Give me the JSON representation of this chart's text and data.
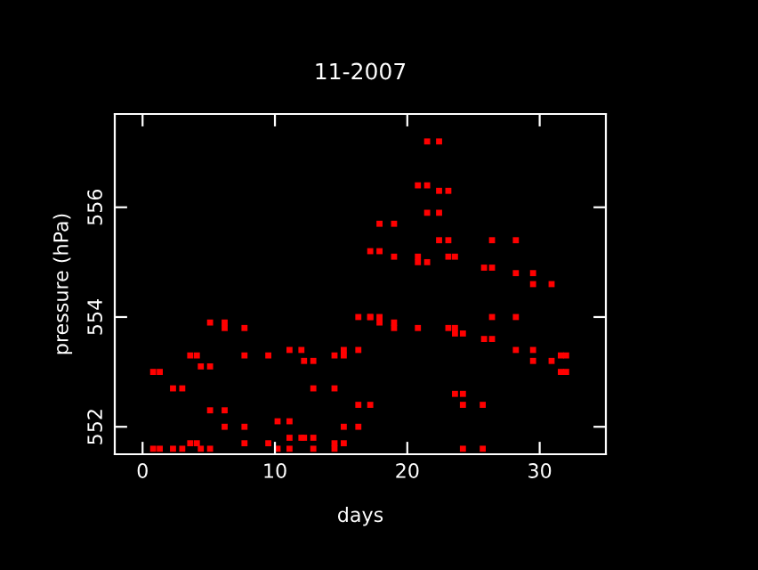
{
  "chart_data": {
    "type": "scatter",
    "title": "11-2007",
    "xlabel": "days",
    "ylabel": "pressure (hPa)",
    "xlim": [
      -2.1,
      35
    ],
    "xticks": [
      0,
      10,
      20,
      30
    ],
    "ylim": [
      551.5,
      557.7
    ],
    "yticks": [
      552,
      554,
      556
    ],
    "grid": false,
    "legend": false,
    "marker": "square",
    "series": [
      {
        "color": "#ff0000",
        "x": [
          0.8,
          0.8,
          1.3,
          1.3,
          2.3,
          2.3,
          3.0,
          3.0,
          3.6,
          3.6,
          4.1,
          4.1,
          4.4,
          4.4,
          5.1,
          5.1,
          5.1,
          5.1,
          6.2,
          6.2,
          6.2,
          6.2,
          7.7,
          7.7,
          7.7,
          7.7,
          9.5,
          9.5,
          10.2,
          10.2,
          11.1,
          11.1,
          11.1,
          11.1,
          12.0,
          12.0,
          12.2,
          12.2,
          12.9,
          12.9,
          12.9,
          12.9,
          14.5,
          14.5,
          14.5,
          14.5,
          15.2,
          15.2,
          15.2,
          15.2,
          16.3,
          16.3,
          16.3,
          16.3,
          17.2,
          17.2,
          17.2,
          17.2,
          17.9,
          17.9,
          17.9,
          17.9,
          19.0,
          19.0,
          19.0,
          19.0,
          20.8,
          20.8,
          20.8,
          20.8,
          21.5,
          21.5,
          21.5,
          21.5,
          22.4,
          22.4,
          22.4,
          22.4,
          23.1,
          23.1,
          23.1,
          23.1,
          23.6,
          23.6,
          23.6,
          23.6,
          24.2,
          24.2,
          24.2,
          24.2,
          25.7,
          25.7,
          25.8,
          25.8,
          26.4,
          26.4,
          26.4,
          26.4,
          28.2,
          28.2,
          28.2,
          28.2,
          29.5,
          29.5,
          29.5,
          29.5,
          30.9,
          30.9,
          31.6,
          31.6,
          32.0,
          32.0
        ],
        "values": [
          551.6,
          553.0,
          551.6,
          553.0,
          551.6,
          552.7,
          551.6,
          552.7,
          551.7,
          553.3,
          551.7,
          553.3,
          551.6,
          553.1,
          551.6,
          553.1,
          552.3,
          553.9,
          552.3,
          553.9,
          552.0,
          553.8,
          552.0,
          553.8,
          551.7,
          553.3,
          551.7,
          553.3,
          551.6,
          552.1,
          551.6,
          552.1,
          551.8,
          553.4,
          551.8,
          553.4,
          551.8,
          553.2,
          551.8,
          553.2,
          551.6,
          552.7,
          551.6,
          552.7,
          551.7,
          553.3,
          551.7,
          553.3,
          552.0,
          553.4,
          552.0,
          553.4,
          552.4,
          554.0,
          552.4,
          554.0,
          554.0,
          555.2,
          554.0,
          555.2,
          553.9,
          555.7,
          553.9,
          555.7,
          553.8,
          555.1,
          553.8,
          555.1,
          555.0,
          556.4,
          555.0,
          556.4,
          555.9,
          557.2,
          555.9,
          557.2,
          555.4,
          556.3,
          555.4,
          556.3,
          553.8,
          555.1,
          553.8,
          555.1,
          552.6,
          553.7,
          552.6,
          553.7,
          551.6,
          552.4,
          551.6,
          552.4,
          553.6,
          554.9,
          553.6,
          554.9,
          554.0,
          555.4,
          554.0,
          555.4,
          553.4,
          554.8,
          553.4,
          554.8,
          553.2,
          554.6,
          553.2,
          554.6,
          553.0,
          553.3,
          553.0,
          553.3
        ]
      }
    ]
  }
}
